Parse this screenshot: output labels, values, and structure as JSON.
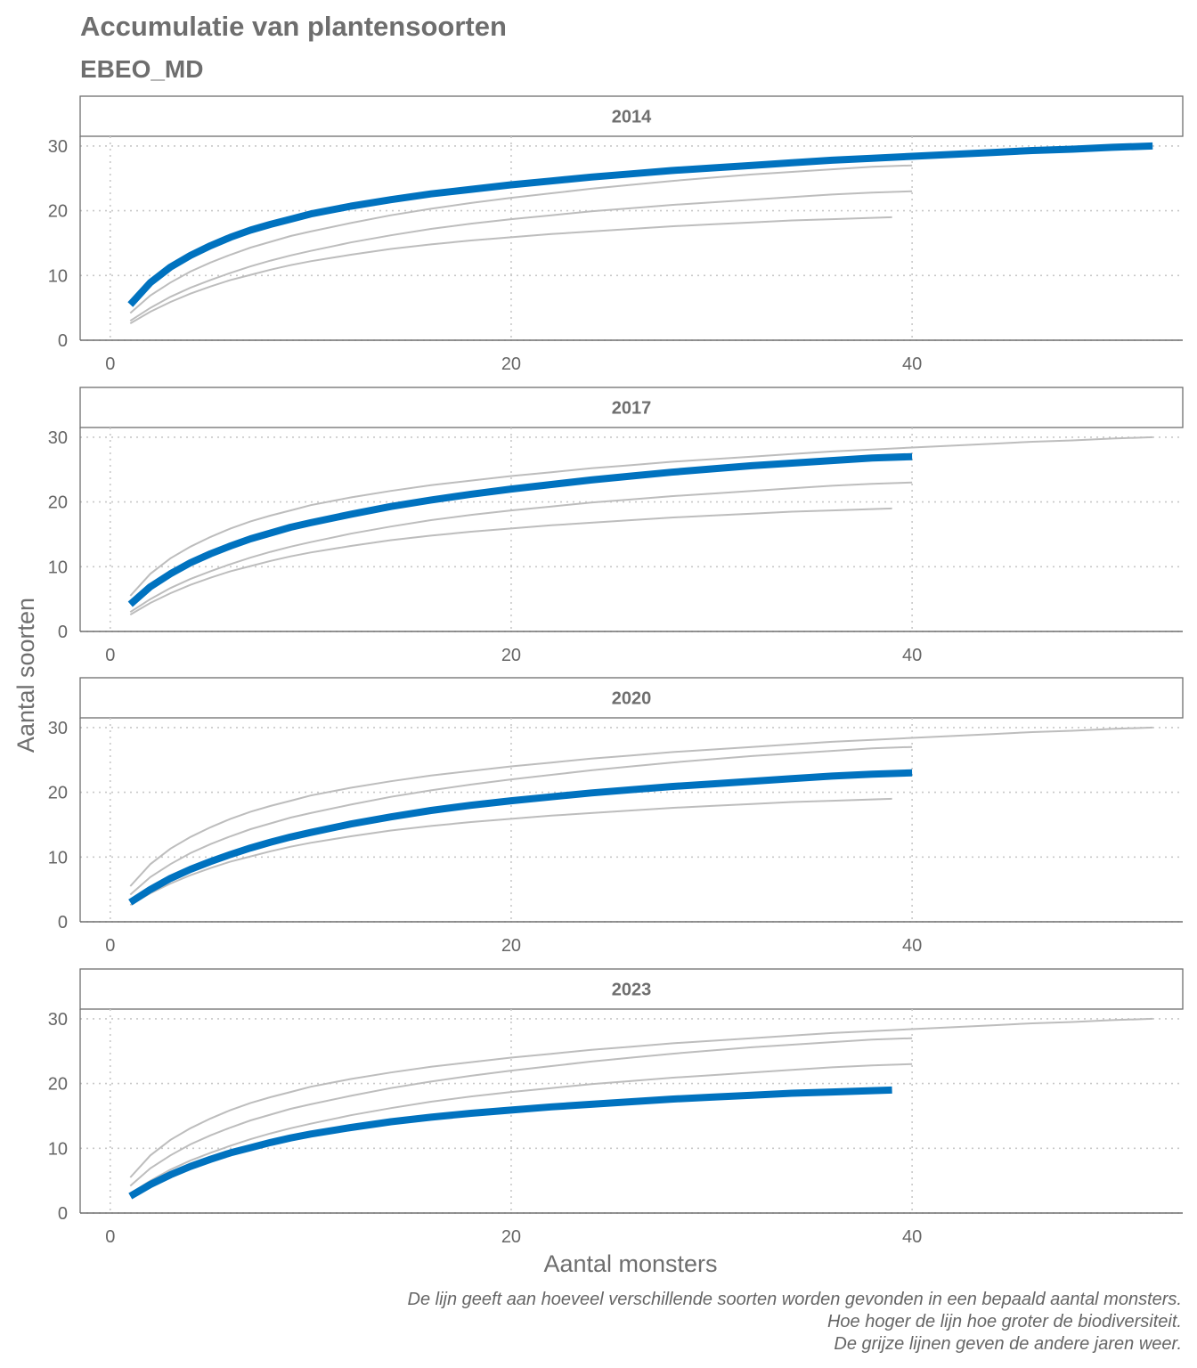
{
  "colors": {
    "highlight": "#0072bf",
    "other_years": "#bdbdbd",
    "grid": "#c8c8c8",
    "axis": "#6e6e6e",
    "text": "#666666"
  },
  "chart_data": {
    "type": "line",
    "title": "Accumulatie van plantensoorten",
    "subtitle": "EBEO_MD",
    "xlabel": "Aantal monsters",
    "ylabel": "Aantal soorten",
    "xlim": [
      -1.5,
      53.5
    ],
    "ylim": [
      0,
      31.5
    ],
    "xticks": [
      0,
      20,
      40
    ],
    "yticks": [
      0,
      10,
      20,
      30
    ],
    "grid": "dotted",
    "facet_by": "year",
    "panels": [
      "2014",
      "2017",
      "2020",
      "2023"
    ],
    "series": [
      {
        "name": "2014",
        "x": [
          1,
          2,
          3,
          4,
          5,
          6,
          7,
          8,
          9,
          10,
          12,
          14,
          16,
          18,
          20,
          22,
          24,
          26,
          28,
          30,
          32,
          34,
          36,
          38,
          40,
          42,
          44,
          46,
          48,
          50,
          52
        ],
        "y": [
          5.5,
          8.9,
          11.3,
          13.1,
          14.6,
          15.9,
          17.0,
          17.9,
          18.7,
          19.5,
          20.7,
          21.7,
          22.6,
          23.3,
          24.0,
          24.6,
          25.2,
          25.7,
          26.2,
          26.6,
          27.0,
          27.4,
          27.8,
          28.1,
          28.4,
          28.7,
          29.0,
          29.3,
          29.5,
          29.8,
          30.0
        ]
      },
      {
        "name": "2017",
        "x": [
          1,
          2,
          3,
          4,
          5,
          6,
          7,
          8,
          9,
          10,
          12,
          14,
          16,
          18,
          20,
          22,
          24,
          26,
          28,
          30,
          32,
          34,
          36,
          38,
          40
        ],
        "y": [
          4.2,
          6.9,
          8.9,
          10.6,
          12.0,
          13.2,
          14.3,
          15.2,
          16.1,
          16.8,
          18.1,
          19.3,
          20.3,
          21.2,
          22.0,
          22.7,
          23.4,
          24.0,
          24.6,
          25.1,
          25.6,
          26.0,
          26.4,
          26.8,
          27.0
        ]
      },
      {
        "name": "2020",
        "x": [
          1,
          2,
          3,
          4,
          5,
          6,
          7,
          8,
          9,
          10,
          12,
          14,
          16,
          18,
          20,
          22,
          24,
          26,
          28,
          30,
          32,
          34,
          36,
          38,
          40
        ],
        "y": [
          3.0,
          5.0,
          6.7,
          8.1,
          9.3,
          10.4,
          11.4,
          12.3,
          13.1,
          13.8,
          15.1,
          16.2,
          17.2,
          18.0,
          18.7,
          19.3,
          19.9,
          20.4,
          20.9,
          21.3,
          21.7,
          22.1,
          22.5,
          22.8,
          23.0
        ]
      },
      {
        "name": "2023",
        "x": [
          1,
          2,
          3,
          4,
          5,
          6,
          7,
          8,
          9,
          10,
          12,
          14,
          16,
          18,
          20,
          22,
          24,
          26,
          28,
          30,
          32,
          34,
          36,
          38,
          39
        ],
        "y": [
          2.6,
          4.4,
          5.9,
          7.2,
          8.3,
          9.3,
          10.1,
          10.9,
          11.6,
          12.2,
          13.2,
          14.1,
          14.8,
          15.4,
          15.9,
          16.4,
          16.8,
          17.2,
          17.6,
          17.9,
          18.2,
          18.5,
          18.7,
          18.9,
          19.0
        ]
      }
    ],
    "caption": [
      "De lijn geeft aan hoeveel verschillende soorten worden gevonden in een bepaald aantal monsters.",
      "Hoe hoger de lijn hoe groter de biodiversiteit.",
      "De grijze lijnen geven de andere jaren weer."
    ]
  }
}
